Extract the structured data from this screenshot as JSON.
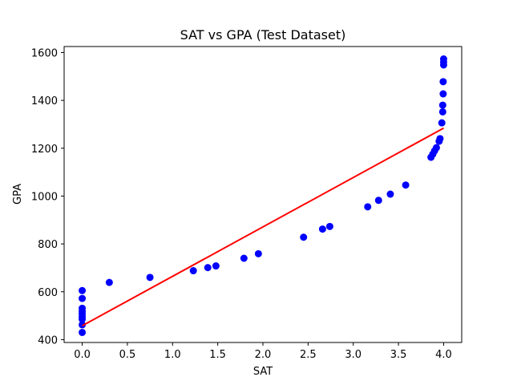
{
  "chart_data": {
    "type": "scatter",
    "title": "SAT vs GPA (Test Dataset)",
    "xlabel": "SAT",
    "ylabel": "GPA",
    "xlim": [
      -0.2,
      4.2
    ],
    "ylim": [
      388,
      1625
    ],
    "xticks": [
      0.0,
      0.5,
      1.0,
      1.5,
      2.0,
      2.5,
      3.0,
      3.5,
      4.0
    ],
    "xtick_labels": [
      "0.0",
      "0.5",
      "1.0",
      "1.5",
      "2.0",
      "2.5",
      "3.0",
      "3.5",
      "4.0"
    ],
    "yticks": [
      400,
      600,
      800,
      1000,
      1200,
      1400,
      1600
    ],
    "ytick_labels": [
      "400",
      "600",
      "800",
      "1000",
      "1200",
      "1400",
      "1600"
    ],
    "grid": false,
    "colors": {
      "points": "#0000ff",
      "fit_line": "#ff0000",
      "axes": "#000000"
    },
    "series": [
      {
        "type": "scatter",
        "points": [
          [
            0.0,
            605
          ],
          [
            0.0,
            572
          ],
          [
            0.0,
            531
          ],
          [
            0.0,
            519
          ],
          [
            0.0,
            508
          ],
          [
            0.0,
            496
          ],
          [
            0.0,
            485
          ],
          [
            0.0,
            462
          ],
          [
            0.0,
            430
          ],
          [
            0.3,
            639
          ],
          [
            0.75,
            660
          ],
          [
            1.23,
            688
          ],
          [
            1.39,
            701
          ],
          [
            1.48,
            708
          ],
          [
            1.79,
            740
          ],
          [
            1.95,
            759
          ],
          [
            2.45,
            828
          ],
          [
            2.66,
            862
          ],
          [
            2.74,
            873
          ],
          [
            3.16,
            955
          ],
          [
            3.28,
            982
          ],
          [
            3.41,
            1008
          ],
          [
            3.58,
            1046
          ],
          [
            3.86,
            1162
          ],
          [
            3.88,
            1175
          ],
          [
            3.9,
            1189
          ],
          [
            3.92,
            1202
          ],
          [
            3.95,
            1229
          ],
          [
            3.96,
            1240
          ],
          [
            3.98,
            1306
          ],
          [
            3.99,
            1352
          ],
          [
            3.99,
            1380
          ],
          [
            3.995,
            1427
          ],
          [
            3.995,
            1478
          ],
          [
            4.0,
            1548
          ],
          [
            4.0,
            1560
          ],
          [
            4.0,
            1573
          ]
        ]
      },
      {
        "type": "line",
        "x": [
          0.0,
          4.0
        ],
        "y": [
          458,
          1284
        ]
      }
    ]
  }
}
